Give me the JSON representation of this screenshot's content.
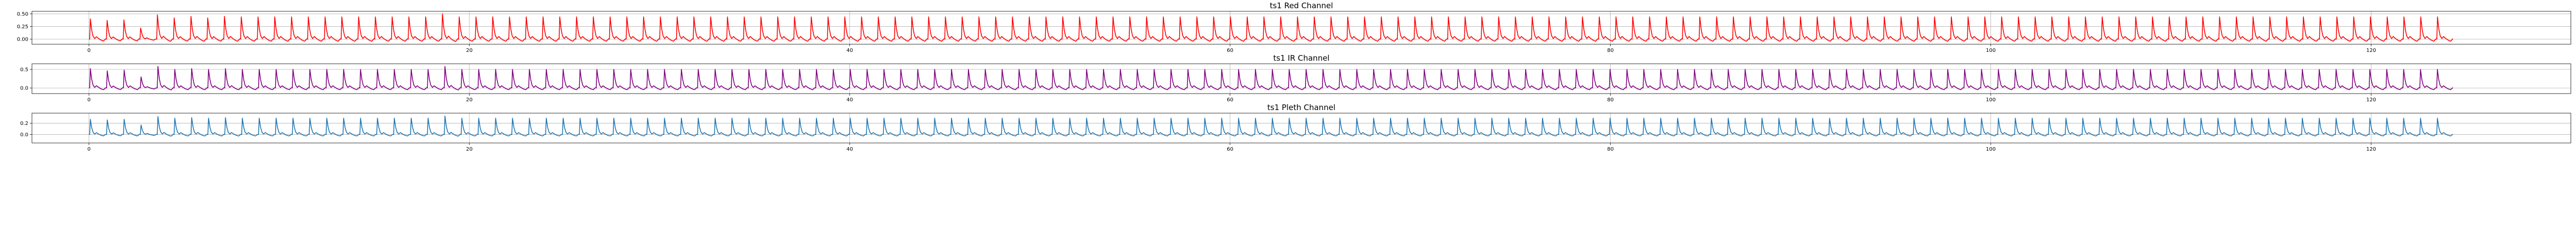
{
  "chart_data": [
    {
      "type": "line",
      "title": "ts1 Red Channel",
      "xlabel": "",
      "ylabel": "",
      "xlim": [
        -3,
        130.5
      ],
      "ylim": [
        -0.1,
        0.55
      ],
      "xticks": [
        0,
        20,
        40,
        60,
        80,
        100,
        120
      ],
      "xtick_labels": [
        "0",
        "20",
        "40",
        "60",
        "80",
        "100",
        "120"
      ],
      "yticks": [
        0.0,
        0.25,
        0.5
      ],
      "ytick_labels": [
        "0.00",
        "0.25",
        "0.50"
      ],
      "grid": true,
      "color": "#ff0000",
      "series": [
        {
          "beat_amplitudes": [
            0.4,
            0.37,
            0.38,
            0.22,
            0.48,
            0.42,
            0.45,
            0.42,
            0.45,
            0.44,
            0.44,
            0.44,
            0.44,
            0.44,
            0.44,
            0.44,
            0.44,
            0.44,
            0.44,
            0.44,
            0.44,
            0.5,
            0.44,
            0.44,
            0.44,
            0.44,
            0.44,
            0.44,
            0.44,
            0.44,
            0.44,
            0.44,
            0.44,
            0.44,
            0.44,
            0.44,
            0.44,
            0.44,
            0.44,
            0.44,
            0.44,
            0.44,
            0.44,
            0.44,
            0.44,
            0.44,
            0.44,
            0.44,
            0.44,
            0.44,
            0.44,
            0.44,
            0.44,
            0.44,
            0.44,
            0.44,
            0.44,
            0.44,
            0.44,
            0.44,
            0.44,
            0.44,
            0.44,
            0.44,
            0.44,
            0.44,
            0.44,
            0.44,
            0.44,
            0.44,
            0.44,
            0.44,
            0.44,
            0.44,
            0.44,
            0.44,
            0.44,
            0.44,
            0.44,
            0.44,
            0.44,
            0.44,
            0.44,
            0.44,
            0.44,
            0.44,
            0.44,
            0.44,
            0.44,
            0.44,
            0.44,
            0.44,
            0.44,
            0.44,
            0.44,
            0.44,
            0.44,
            0.44,
            0.44,
            0.44,
            0.44,
            0.44,
            0.44,
            0.44,
            0.44,
            0.44,
            0.44,
            0.44,
            0.44,
            0.44,
            0.44,
            0.44,
            0.44,
            0.44,
            0.44,
            0.44,
            0.44,
            0.44,
            0.44,
            0.44,
            0.44,
            0.44,
            0.44,
            0.44,
            0.44,
            0.44,
            0.44,
            0.44,
            0.44,
            0.44,
            0.44,
            0.44,
            0.44,
            0.44,
            0.44,
            0.44,
            0.44,
            0.44,
            0.44,
            0.44,
            0.44
          ]
        }
      ]
    },
    {
      "type": "line",
      "title": "ts1 IR Channel",
      "xlabel": "",
      "ylabel": "",
      "xlim": [
        -3,
        130.5
      ],
      "ylim": [
        -0.15,
        0.65
      ],
      "xticks": [
        0,
        20,
        40,
        60,
        80,
        100,
        120
      ],
      "xtick_labels": [
        "0",
        "20",
        "40",
        "60",
        "80",
        "100",
        "120"
      ],
      "yticks": [
        0.0,
        0.5
      ],
      "ytick_labels": [
        "0.0",
        "0.5"
      ],
      "grid": true,
      "color": "#800080",
      "series": [
        {
          "beat_amplitudes": [
            0.52,
            0.46,
            0.48,
            0.3,
            0.58,
            0.5,
            0.52,
            0.5,
            0.52,
            0.5,
            0.5,
            0.5,
            0.5,
            0.5,
            0.5,
            0.5,
            0.5,
            0.5,
            0.5,
            0.5,
            0.5,
            0.58,
            0.5,
            0.5,
            0.5,
            0.5,
            0.5,
            0.5,
            0.5,
            0.5,
            0.5,
            0.5,
            0.5,
            0.5,
            0.5,
            0.5,
            0.5,
            0.5,
            0.5,
            0.5,
            0.5,
            0.5,
            0.5,
            0.5,
            0.5,
            0.5,
            0.5,
            0.5,
            0.5,
            0.5,
            0.5,
            0.5,
            0.5,
            0.5,
            0.5,
            0.5,
            0.5,
            0.5,
            0.5,
            0.5,
            0.5,
            0.5,
            0.5,
            0.5,
            0.5,
            0.5,
            0.5,
            0.5,
            0.5,
            0.5,
            0.5,
            0.5,
            0.5,
            0.5,
            0.5,
            0.5,
            0.5,
            0.5,
            0.5,
            0.5,
            0.5,
            0.5,
            0.5,
            0.5,
            0.5,
            0.5,
            0.5,
            0.5,
            0.5,
            0.5,
            0.5,
            0.5,
            0.5,
            0.5,
            0.5,
            0.5,
            0.5,
            0.5,
            0.5,
            0.5,
            0.5,
            0.5,
            0.5,
            0.5,
            0.5,
            0.5,
            0.5,
            0.5,
            0.5,
            0.5,
            0.5,
            0.5,
            0.5,
            0.5,
            0.5,
            0.5,
            0.5,
            0.5,
            0.5,
            0.5,
            0.5,
            0.5,
            0.5,
            0.5,
            0.5,
            0.5,
            0.5,
            0.5,
            0.5,
            0.5,
            0.5,
            0.5,
            0.5,
            0.5,
            0.5,
            0.5,
            0.5,
            0.5,
            0.5,
            0.5
          ]
        }
      ]
    },
    {
      "type": "line",
      "title": "ts1 Pleth Channel",
      "xlabel": "",
      "ylabel": "",
      "xlim": [
        -3,
        130.5
      ],
      "ylim": [
        -0.15,
        0.38
      ],
      "xticks": [
        0,
        20,
        40,
        60,
        80,
        100,
        120
      ],
      "xtick_labels": [
        "0",
        "20",
        "40",
        "60",
        "80",
        "100",
        "120"
      ],
      "yticks": [
        0.0,
        0.2
      ],
      "ytick_labels": [
        "0.0",
        "0.2"
      ],
      "grid": true,
      "color": "#1f77b4",
      "series": [
        {
          "beat_amplitudes": [
            0.27,
            0.26,
            0.27,
            0.17,
            0.32,
            0.29,
            0.3,
            0.29,
            0.3,
            0.29,
            0.29,
            0.29,
            0.29,
            0.29,
            0.29,
            0.29,
            0.29,
            0.29,
            0.29,
            0.29,
            0.29,
            0.33,
            0.29,
            0.29,
            0.29,
            0.29,
            0.29,
            0.29,
            0.29,
            0.29,
            0.29,
            0.29,
            0.29,
            0.29,
            0.29,
            0.29,
            0.29,
            0.29,
            0.29,
            0.29,
            0.29,
            0.29,
            0.29,
            0.29,
            0.29,
            0.29,
            0.29,
            0.29,
            0.29,
            0.29,
            0.29,
            0.29,
            0.29,
            0.29,
            0.29,
            0.29,
            0.29,
            0.29,
            0.29,
            0.29,
            0.29,
            0.29,
            0.29,
            0.29,
            0.29,
            0.29,
            0.29,
            0.29,
            0.29,
            0.29,
            0.29,
            0.29,
            0.29,
            0.29,
            0.29,
            0.29,
            0.29,
            0.29,
            0.29,
            0.29,
            0.29,
            0.29,
            0.29,
            0.29,
            0.29,
            0.29,
            0.29,
            0.29,
            0.29,
            0.29,
            0.29,
            0.29,
            0.29,
            0.29,
            0.29,
            0.29,
            0.29,
            0.29,
            0.29,
            0.29,
            0.29,
            0.29,
            0.29,
            0.29,
            0.29,
            0.29,
            0.29,
            0.29,
            0.29,
            0.29,
            0.29,
            0.29,
            0.29,
            0.29,
            0.29,
            0.29,
            0.29,
            0.29,
            0.29,
            0.29,
            0.29,
            0.29,
            0.29,
            0.29,
            0.29,
            0.29,
            0.29,
            0.29,
            0.29,
            0.29,
            0.29,
            0.29,
            0.29,
            0.29,
            0.29,
            0.29,
            0.29,
            0.29,
            0.29,
            0.29
          ]
        }
      ]
    }
  ]
}
